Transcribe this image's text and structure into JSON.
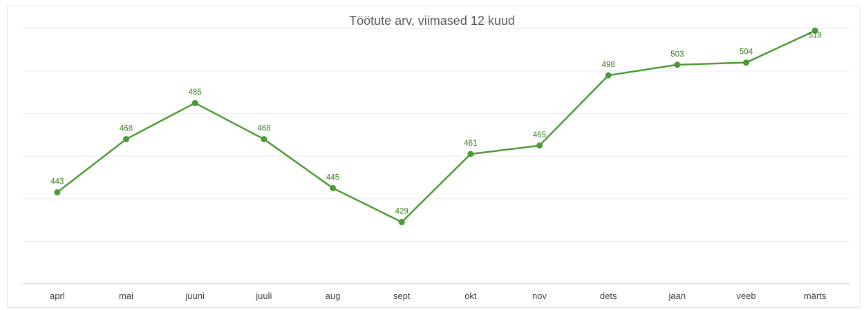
{
  "chart_data": {
    "type": "line",
    "title": "Töötute arv, viimased 12 kuud",
    "categories": [
      "aprl",
      "mai",
      "juuni",
      "juuli",
      "aug",
      "sept",
      "okt",
      "nov",
      "dets",
      "jaan",
      "veeb",
      "märts"
    ],
    "series": [
      {
        "values": [
          443,
          468,
          485,
          468,
          445,
          429,
          461,
          465,
          498,
          503,
          504,
          519
        ],
        "color": "#4a9a35"
      }
    ],
    "ylim": [
      400,
      525
    ],
    "grid": true,
    "show_y_tick_labels": false,
    "legend": "none"
  }
}
